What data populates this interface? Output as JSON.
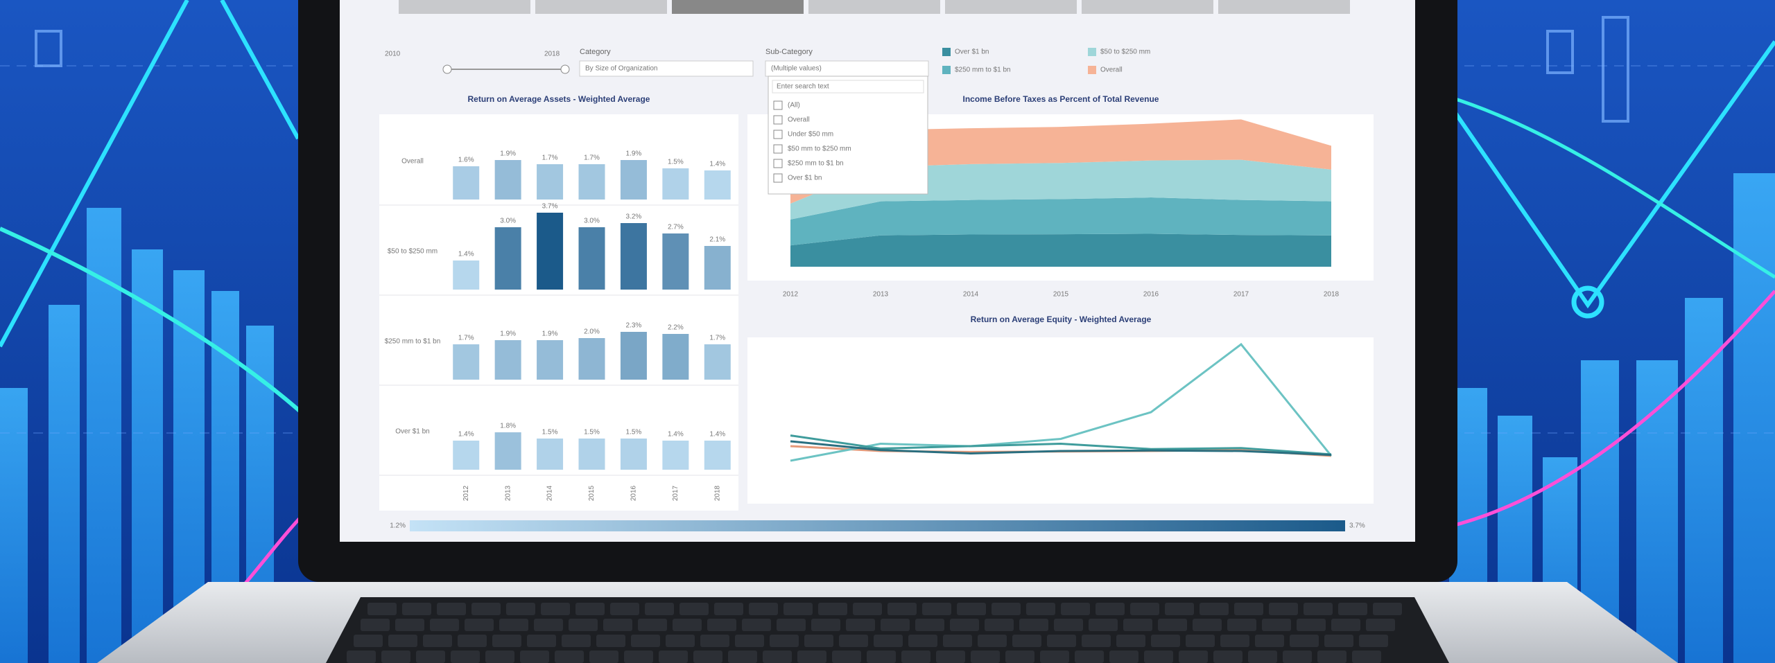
{
  "filters": {
    "year_start": "2010",
    "year_end": "2018",
    "category_label": "Category",
    "category_value": "By Size of Organization",
    "subcategory_label": "Sub-Category",
    "subcategory_value": "(Multiple values)",
    "subcategory_search": "Enter search text",
    "subcategory_options": [
      "(All)",
      "Overall",
      "Under $50 mm",
      "$50 mm to $250 mm",
      "$250 mm to $1 bn",
      "Over $1 bn"
    ]
  },
  "chart_data": [
    {
      "type": "bar",
      "title": "Return on Average Assets - Weighted Average",
      "categories": [
        "2012",
        "2013",
        "2014",
        "2015",
        "2016",
        "2017",
        "2018"
      ],
      "ylim": [
        0,
        4
      ],
      "color_scale": {
        "range": [
          1.2,
          3.7
        ],
        "labels": [
          "1.2%",
          "3.7%"
        ],
        "colors": [
          "#c4e2f6",
          "#1b5a8a"
        ]
      },
      "series": [
        {
          "name": "Overall",
          "values": [
            1.6,
            1.9,
            1.7,
            1.7,
            1.9,
            1.5,
            1.4
          ],
          "value_labels": [
            "1.6%",
            "1.9%",
            "1.7%",
            "1.7%",
            "1.9%",
            "1.5%",
            "1.4%"
          ]
        },
        {
          "name": "$50 to $250 mm",
          "values": [
            1.4,
            3.0,
            3.7,
            3.0,
            3.2,
            2.7,
            2.1
          ],
          "value_labels": [
            "1.4%",
            "3.0%",
            "3.7%",
            "3.0%",
            "3.2%",
            "2.7%",
            "2.1%"
          ]
        },
        {
          "name": "$250 mm to $1 bn",
          "values": [
            1.7,
            1.9,
            1.9,
            2.0,
            2.3,
            2.2,
            1.7
          ],
          "value_labels": [
            "1.7%",
            "1.9%",
            "1.9%",
            "2.0%",
            "2.3%",
            "2.2%",
            "1.7%"
          ]
        },
        {
          "name": "Over $1 bn",
          "values": [
            1.4,
            1.8,
            1.5,
            1.5,
            1.5,
            1.4,
            1.4
          ],
          "value_labels": [
            "1.4%",
            "1.8%",
            "1.5%",
            "1.5%",
            "1.5%",
            "1.4%",
            "1.4%"
          ]
        }
      ]
    },
    {
      "type": "area",
      "title": "Income Before Taxes as Percent of Total Revenue",
      "x": [
        "2012",
        "2013",
        "2014",
        "2015",
        "2016",
        "2017",
        "2018"
      ],
      "ylim": [
        0,
        65
      ],
      "series": [
        {
          "name": "Over $1 bn",
          "color": "#3a8fa0",
          "values": [
            9.4,
            13.8,
            14.2,
            14.3,
            14.5,
            14.0,
            13.8
          ]
        },
        {
          "name": "$250 mm to $1 bn",
          "color": "#5fb3bf",
          "values": [
            11.4,
            15.0,
            15.2,
            15.5,
            16.0,
            15.4,
            15.0
          ]
        },
        {
          "name": "$50 to $250 mm",
          "color": "#9fd6d9",
          "values": [
            7.0,
            15.2,
            15.8,
            15.9,
            16.3,
            17.7,
            14.0
          ]
        },
        {
          "name": "Overall",
          "color": "#f6b396",
          "values": [
            5.0,
            16.2,
            15.8,
            15.9,
            16.2,
            17.8,
            10.5
          ]
        }
      ]
    },
    {
      "type": "line",
      "title": "Return on Average Equity - Weighted Average",
      "x": [
        "2012",
        "2013",
        "2014",
        "2015",
        "2016",
        "2017",
        "2018"
      ],
      "ylim": [
        0,
        30
      ],
      "series": [
        {
          "name": "Overall",
          "color": "#e59a7a",
          "values": [
            8.0,
            7.0,
            6.8,
            6.9,
            7.0,
            7.2,
            6.0
          ]
        },
        {
          "name": "$50 to $250 mm",
          "color": "#6cc3c3",
          "values": [
            5.0,
            8.5,
            8.0,
            9.5,
            15.0,
            29.0,
            6.0
          ]
        },
        {
          "name": "$250 mm to $1 bn",
          "color": "#3f9c9c",
          "values": [
            10.2,
            7.5,
            8.0,
            8.5,
            7.4,
            7.6,
            6.3
          ]
        },
        {
          "name": "Over $1 bn",
          "color": "#2a6f80",
          "values": [
            9.0,
            7.2,
            6.5,
            7.0,
            7.1,
            7.0,
            6.2
          ]
        }
      ]
    }
  ]
}
